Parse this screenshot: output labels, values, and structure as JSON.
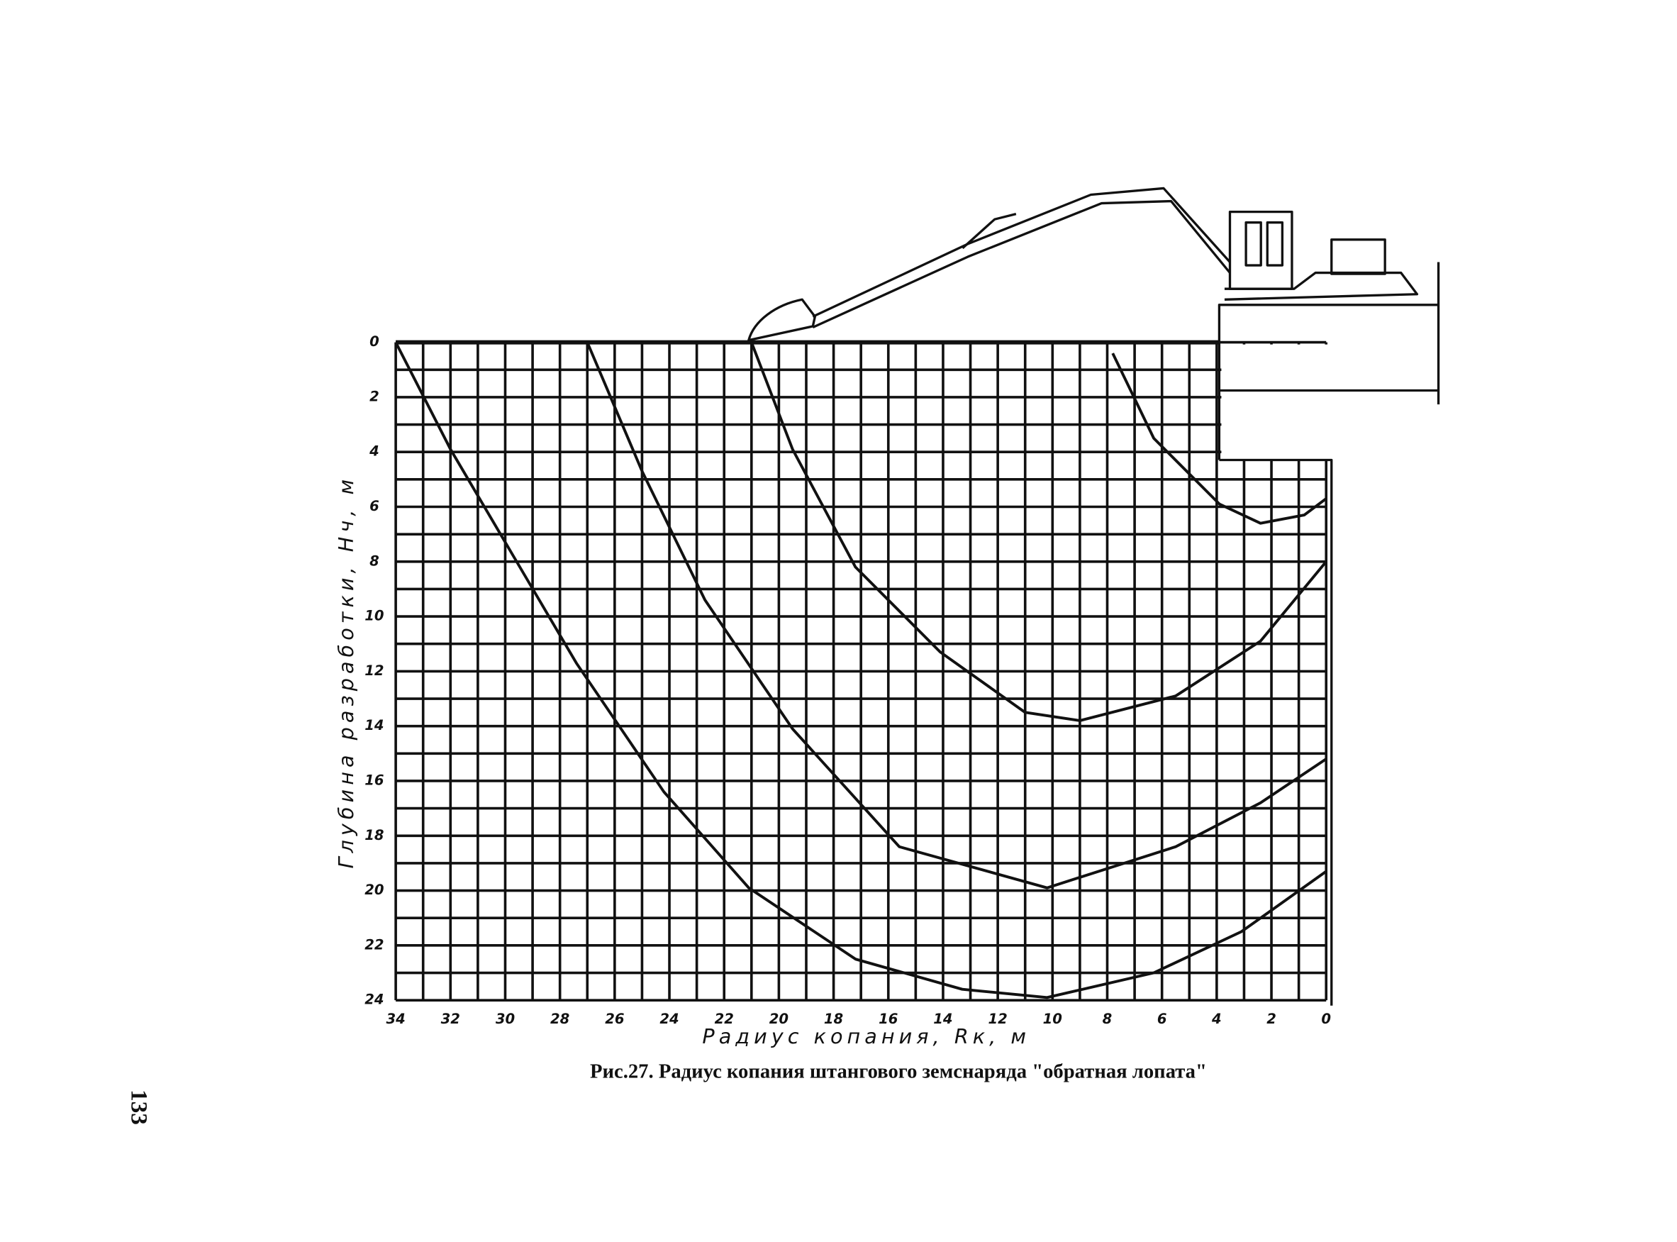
{
  "page_number": "133",
  "chart_data": {
    "type": "line",
    "caption": "Рис.27. Радиус копания штангового земснаряда \"обратная лопата\"",
    "x_label": "Радиус копания, Rк, м",
    "y_label": "Глубина разработки, Нч, м",
    "xlim": [
      34,
      0
    ],
    "xticks": [
      34,
      32,
      30,
      28,
      26,
      24,
      22,
      20,
      18,
      16,
      14,
      12,
      10,
      8,
      6,
      4,
      2,
      0
    ],
    "ylim": [
      24,
      0
    ],
    "yticks": [
      0,
      2,
      4,
      6,
      8,
      10,
      12,
      14,
      16,
      18,
      20,
      22,
      24
    ],
    "grid": true,
    "series": [
      {
        "color": "#111111",
        "x": [
          34,
          32.0,
          29.7,
          27.4,
          24.2,
          21.1,
          17.2,
          13.3,
          10.2,
          6.3,
          3.1,
          0
        ],
        "values": [
          0,
          3.9,
          7.8,
          11.7,
          16.4,
          19.9,
          22.5,
          23.6,
          23.9,
          23.0,
          21.5,
          19.3
        ]
      },
      {
        "color": "#111111",
        "x": [
          27,
          25.0,
          22.7,
          19.5,
          15.6,
          10.2,
          5.5,
          2.4,
          0
        ],
        "values": [
          0,
          4.7,
          9.4,
          14.1,
          18.4,
          19.9,
          18.4,
          16.8,
          15.2
        ]
      },
      {
        "color": "#111111",
        "x": [
          21,
          19.5,
          17.2,
          14.1,
          11.0,
          9.0,
          5.5,
          2.4,
          0
        ],
        "values": [
          0,
          3.9,
          8.2,
          11.3,
          13.5,
          13.8,
          12.9,
          10.9,
          8.0
        ]
      },
      {
        "color": "#111111",
        "x": [
          7.8,
          6.3,
          3.9,
          2.4,
          0.8,
          0
        ],
        "values": [
          0.4,
          3.5,
          5.9,
          6.6,
          6.3,
          5.7
        ]
      }
    ]
  }
}
